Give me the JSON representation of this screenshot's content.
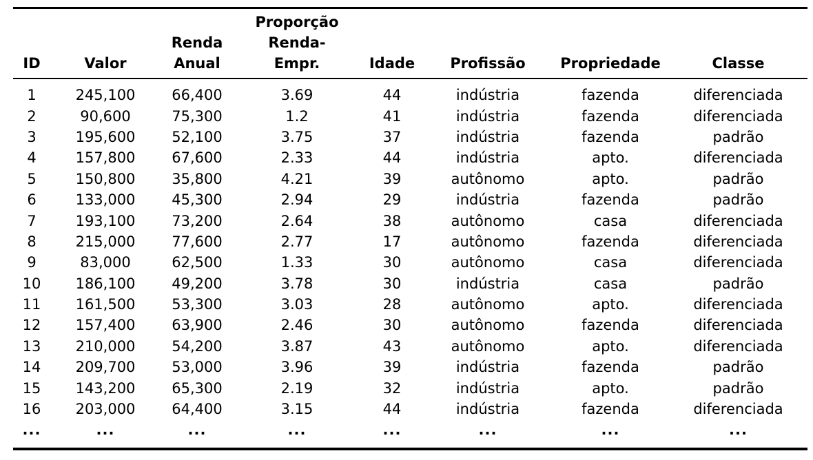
{
  "table": {
    "headers": {
      "id": "ID",
      "valor": "Valor",
      "renda_line1": "Renda",
      "renda_line2": "Anual",
      "proporcao_line1": "Proporção",
      "proporcao_line2": "Renda-",
      "proporcao_line3": "Empr.",
      "idade": "Idade",
      "profissao": "Profissão",
      "propriedade": "Propriedade",
      "classe": "Classe"
    },
    "rows": [
      [
        "1",
        "245,100",
        "66,400",
        "3.69",
        "44",
        "indústria",
        "fazenda",
        "diferenciada"
      ],
      [
        "2",
        "90,600",
        "75,300",
        "1.2",
        "41",
        "indústria",
        "fazenda",
        "diferenciada"
      ],
      [
        "3",
        "195,600",
        "52,100",
        "3.75",
        "37",
        "indústria",
        "fazenda",
        "padrão"
      ],
      [
        "4",
        "157,800",
        "67,600",
        "2.33",
        "44",
        "indústria",
        "apto.",
        "diferenciada"
      ],
      [
        "5",
        "150,800",
        "35,800",
        "4.21",
        "39",
        "autônomo",
        "apto.",
        "padrão"
      ],
      [
        "6",
        "133,000",
        "45,300",
        "2.94",
        "29",
        "indústria",
        "fazenda",
        "padrão"
      ],
      [
        "7",
        "193,100",
        "73,200",
        "2.64",
        "38",
        "autônomo",
        "casa",
        "diferenciada"
      ],
      [
        "8",
        "215,000",
        "77,600",
        "2.77",
        "17",
        "autônomo",
        "fazenda",
        "diferenciada"
      ],
      [
        "9",
        "83,000",
        "62,500",
        "1.33",
        "30",
        "autônomo",
        "casa",
        "diferenciada"
      ],
      [
        "10",
        "186,100",
        "49,200",
        "3.78",
        "30",
        "indústria",
        "casa",
        "padrão"
      ],
      [
        "11",
        "161,500",
        "53,300",
        "3.03",
        "28",
        "autônomo",
        "apto.",
        "diferenciada"
      ],
      [
        "12",
        "157,400",
        "63,900",
        "2.46",
        "30",
        "autônomo",
        "fazenda",
        "diferenciada"
      ],
      [
        "13",
        "210,000",
        "54,200",
        "3.87",
        "43",
        "autônomo",
        "apto.",
        "diferenciada"
      ],
      [
        "14",
        "209,700",
        "53,000",
        "3.96",
        "39",
        "indústria",
        "fazenda",
        "padrão"
      ],
      [
        "15",
        "143,200",
        "65,300",
        "2.19",
        "32",
        "indústria",
        "apto.",
        "padrão"
      ],
      [
        "16",
        "203,000",
        "64,400",
        "3.15",
        "44",
        "indústria",
        "fazenda",
        "diferenciada"
      ],
      [
        "...",
        "...",
        "...",
        "...",
        "...",
        "...",
        "...",
        "..."
      ]
    ]
  }
}
